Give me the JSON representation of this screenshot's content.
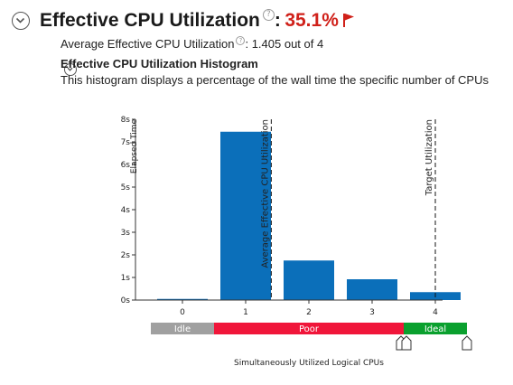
{
  "header": {
    "title": "Effective CPU Utilization",
    "colon": ":",
    "value": "35.1%",
    "help_glyph": "?",
    "flag_color": "#d0211a"
  },
  "average": {
    "label": "Average Effective CPU Utilization",
    "help_glyph": "?",
    "colon": ":",
    "value": "1.405 out of 4"
  },
  "histogram": {
    "title": "Effective CPU Utilization Histogram",
    "description": "This histogram displays a percentage of the wall time the specific number of CPUs"
  },
  "chart_data": {
    "type": "bar",
    "categories": [
      "0",
      "1",
      "2",
      "3",
      "4"
    ],
    "values": [
      0.05,
      7.45,
      1.75,
      0.92,
      0.35
    ],
    "ylabel": "Elapsed Time",
    "xlabel": "Simultaneously Utilized Logical CPUs",
    "ylim": [
      0,
      8
    ],
    "yticks": [
      0,
      1,
      2,
      3,
      4,
      5,
      6,
      7,
      8
    ],
    "ytick_labels": [
      "0s",
      "1s",
      "2s",
      "3s",
      "4s",
      "5s",
      "6s",
      "7s",
      "8s"
    ],
    "bar_color": "#0b6fba",
    "grid": false,
    "reference_lines": [
      {
        "label": "Average Effective CPU Utilization",
        "x": 1.405
      },
      {
        "label": "Target Utilization",
        "x": 4
      }
    ],
    "bands": [
      {
        "label": "Idle",
        "from": -0.5,
        "to": 0.5,
        "color": "#a0a0a0"
      },
      {
        "label": "Poor",
        "from": 0.5,
        "to": 3.5,
        "color": "#f0163a"
      },
      {
        "label": "Ideal",
        "from": 3.5,
        "to": 4.5,
        "color": "#0aa02e"
      }
    ]
  }
}
